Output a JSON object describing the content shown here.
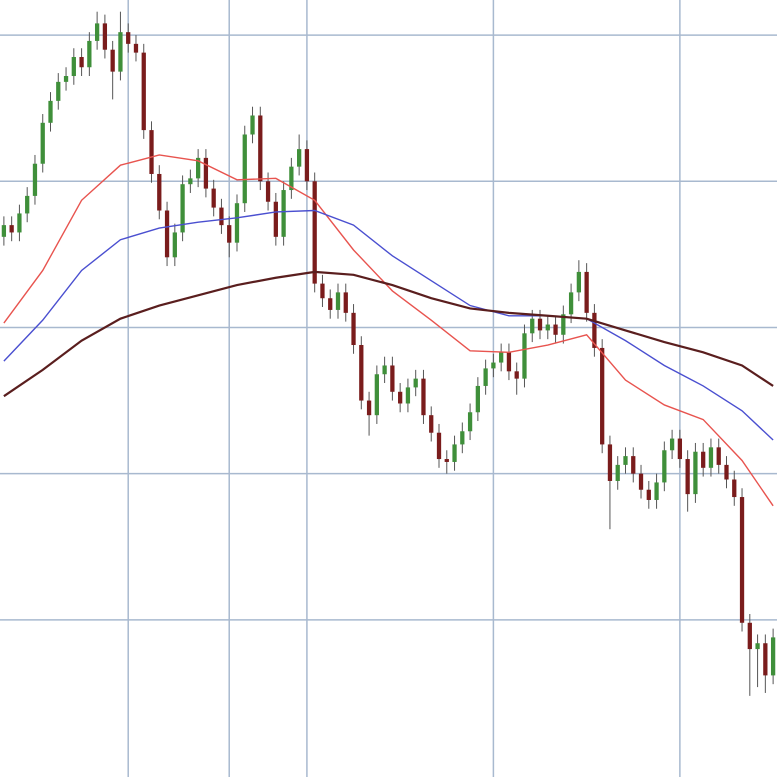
{
  "chart_data": {
    "type": "candlestick",
    "x": [
      0,
      1,
      2,
      3,
      4,
      5,
      6,
      7,
      8,
      9,
      10,
      11,
      12,
      13,
      14,
      15,
      16,
      17,
      18,
      19,
      20,
      21,
      22,
      23,
      24,
      25,
      26,
      27,
      28,
      29,
      30,
      31,
      32,
      33,
      34,
      35,
      36,
      37,
      38,
      39,
      40,
      41,
      42,
      43,
      44,
      45,
      46,
      47,
      48,
      49,
      50,
      51,
      52,
      53,
      54,
      55,
      56,
      57,
      58,
      59,
      60,
      61,
      62,
      63,
      64,
      65,
      66,
      67,
      68,
      69,
      70,
      71,
      72,
      73,
      74,
      75,
      76,
      77,
      78,
      79,
      80,
      81,
      82,
      83,
      84,
      85,
      86,
      87,
      88,
      89,
      90,
      91,
      92,
      93,
      94,
      95,
      96,
      97,
      98,
      99
    ],
    "open": [
      36.2,
      37.0,
      36.5,
      37.8,
      39.0,
      41.2,
      44.0,
      45.5,
      46.8,
      47.2,
      48.5,
      47.8,
      49.6,
      50.8,
      49.0,
      47.5,
      50.2,
      49.4,
      48.8,
      43.5,
      40.5,
      38.0,
      34.8,
      36.5,
      39.8,
      40.2,
      41.6,
      39.5,
      38.2,
      37.0,
      35.8,
      38.5,
      43.2,
      44.5,
      40.0,
      38.6,
      36.2,
      39.4,
      41.0,
      42.2,
      40.0,
      33.0,
      32.0,
      31.2,
      32.4,
      31.0,
      28.8,
      25.0,
      24.0,
      26.8,
      27.4,
      25.6,
      24.8,
      25.9,
      26.5,
      24.0,
      22.8,
      21.0,
      20.8,
      22.0,
      22.9,
      24.2,
      26.0,
      27.2,
      27.6,
      28.3,
      27.0,
      26.5,
      29.6,
      30.6,
      29.8,
      30.2,
      29.5,
      30.9,
      32.4,
      33.8,
      31.0,
      28.6,
      22.0,
      19.5,
      20.6,
      21.2,
      20.0,
      18.9,
      18.2,
      19.4,
      21.6,
      22.4,
      21.0,
      18.6,
      21.5,
      20.4,
      21.8,
      20.6,
      19.6,
      18.4,
      9.8,
      8.0,
      8.4,
      6.2
    ],
    "high": [
      37.6,
      37.6,
      38.4,
      39.6,
      41.8,
      44.6,
      46.1,
      47.4,
      47.8,
      49.1,
      49.1,
      50.2,
      51.6,
      51.4,
      49.6,
      51.6,
      50.8,
      50.0,
      49.4,
      44.1,
      41.1,
      38.6,
      37.1,
      40.4,
      40.8,
      42.2,
      42.2,
      40.1,
      38.8,
      37.6,
      39.1,
      43.8,
      45.1,
      45.1,
      40.6,
      39.2,
      40.0,
      41.6,
      43.2,
      42.8,
      40.6,
      33.6,
      32.6,
      33.0,
      33.0,
      31.6,
      29.4,
      25.6,
      27.4,
      28.0,
      28.0,
      26.2,
      26.5,
      27.1,
      27.1,
      24.6,
      23.4,
      21.6,
      22.6,
      23.5,
      24.8,
      26.6,
      27.8,
      28.2,
      28.9,
      28.9,
      27.6,
      30.2,
      31.2,
      31.2,
      30.8,
      30.8,
      31.5,
      33.0,
      34.6,
      34.4,
      31.6,
      29.2,
      22.6,
      21.2,
      21.8,
      21.8,
      20.6,
      19.5,
      20.0,
      22.2,
      23.0,
      23.0,
      21.6,
      22.1,
      22.1,
      22.4,
      22.4,
      21.2,
      20.2,
      19.0,
      10.4,
      9.0,
      9.0,
      9.4
    ],
    "low": [
      35.6,
      35.9,
      35.9,
      37.2,
      38.4,
      40.6,
      43.4,
      44.9,
      46.2,
      46.6,
      47.2,
      47.2,
      49.0,
      48.4,
      45.6,
      46.9,
      48.8,
      48.2,
      42.9,
      39.9,
      37.4,
      34.2,
      34.2,
      35.9,
      39.2,
      39.6,
      38.9,
      37.6,
      36.4,
      34.8,
      35.2,
      37.9,
      42.6,
      39.4,
      38.0,
      35.6,
      35.6,
      38.8,
      40.4,
      39.4,
      32.4,
      31.4,
      30.6,
      30.6,
      30.4,
      28.2,
      24.4,
      22.6,
      23.4,
      26.2,
      25.0,
      24.2,
      24.2,
      25.3,
      23.4,
      22.2,
      20.4,
      20.0,
      20.2,
      21.4,
      22.3,
      23.6,
      25.4,
      26.6,
      27.0,
      26.4,
      25.4,
      25.9,
      29.0,
      29.2,
      29.2,
      28.9,
      28.9,
      30.3,
      31.8,
      30.4,
      28.0,
      21.4,
      16.2,
      18.9,
      20.0,
      19.4,
      18.3,
      17.6,
      17.6,
      18.8,
      21.0,
      20.4,
      17.4,
      18.0,
      19.8,
      19.8,
      20.0,
      19.0,
      17.8,
      9.2,
      4.8,
      5.4,
      5.0,
      5.6
    ],
    "close": [
      37.0,
      36.5,
      37.8,
      39.0,
      41.2,
      44.0,
      45.5,
      46.8,
      47.2,
      48.5,
      47.8,
      49.6,
      50.8,
      49.0,
      47.5,
      50.2,
      49.4,
      48.8,
      43.5,
      40.5,
      38.0,
      34.8,
      36.5,
      39.8,
      40.2,
      41.6,
      39.5,
      38.2,
      37.0,
      35.8,
      38.5,
      43.2,
      44.5,
      40.0,
      38.6,
      36.2,
      39.4,
      41.0,
      42.2,
      40.0,
      33.0,
      32.0,
      31.2,
      32.4,
      31.0,
      28.8,
      25.0,
      24.0,
      26.8,
      27.4,
      25.6,
      24.8,
      25.9,
      26.5,
      24.0,
      22.8,
      21.0,
      20.8,
      22.0,
      22.9,
      24.2,
      26.0,
      27.2,
      27.6,
      28.3,
      27.0,
      26.5,
      29.6,
      30.6,
      29.8,
      30.2,
      29.5,
      30.9,
      32.4,
      33.8,
      31.0,
      28.6,
      22.0,
      19.5,
      20.6,
      21.2,
      20.0,
      18.9,
      18.2,
      19.4,
      21.6,
      22.4,
      21.0,
      18.6,
      21.5,
      20.4,
      21.8,
      20.6,
      19.6,
      18.4,
      9.8,
      8.0,
      8.4,
      6.2,
      8.8
    ],
    "up_color": "#3f8f3a",
    "down_color": "#7a1c1c",
    "lines": [
      {
        "color": "#e8544f",
        "x": [
          0,
          5,
          10,
          15,
          20,
          25,
          30,
          35,
          40,
          45,
          50,
          55,
          60,
          65,
          70,
          75,
          80,
          85,
          90,
          95,
          99
        ],
        "values": [
          30.3,
          33.9,
          38.7,
          41.1,
          41.8,
          41.4,
          40.1,
          40.2,
          38.7,
          35.3,
          32.5,
          30.5,
          28.4,
          28.3,
          28.8,
          29.5,
          26.4,
          24.7,
          23.7,
          20.9,
          17.8
        ]
      },
      {
        "color": "#4a4fd0",
        "x": [
          0,
          5,
          10,
          15,
          20,
          25,
          30,
          35,
          40,
          45,
          50,
          55,
          60,
          65,
          70,
          75,
          80,
          85,
          90,
          95,
          99
        ],
        "values": [
          27.7,
          30.5,
          33.9,
          36.0,
          36.8,
          37.2,
          37.5,
          37.9,
          38.0,
          37.0,
          34.9,
          33.2,
          31.5,
          30.8,
          30.8,
          30.6,
          29.1,
          27.4,
          26.0,
          24.3,
          22.3
        ]
      },
      {
        "color": "#5a1e1e",
        "x": [
          0,
          5,
          10,
          15,
          20,
          25,
          30,
          35,
          40,
          45,
          50,
          55,
          60,
          65,
          70,
          75,
          80,
          85,
          90,
          95,
          99
        ],
        "values": [
          25.3,
          27.1,
          29.1,
          30.6,
          31.5,
          32.2,
          32.9,
          33.4,
          33.8,
          33.6,
          32.9,
          32.0,
          31.3,
          31.0,
          30.8,
          30.6,
          29.8,
          29.0,
          28.3,
          27.4,
          26.0
        ]
      }
    ],
    "xlim": [
      -0.5,
      99.5
    ],
    "xticks": [
      16,
      29,
      39,
      63,
      87
    ],
    "ylim": [
      -0.75,
      52.4
    ],
    "yticks": [
      10,
      20,
      30,
      40,
      50
    ],
    "grid": true,
    "grid_color": "#a8b9cf"
  }
}
